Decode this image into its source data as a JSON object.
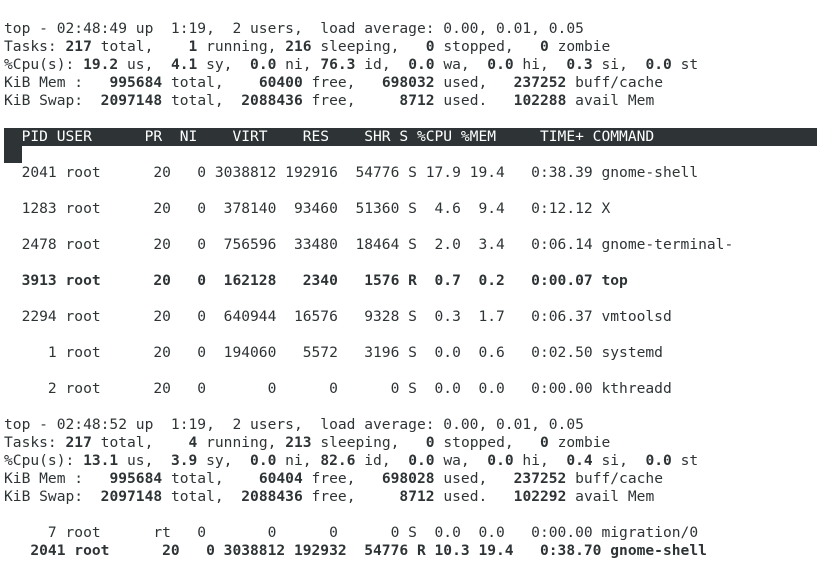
{
  "screen1": {
    "uptime": "top - 02:48:49 up  1:19,  2 users,  load average: 0.00, 0.01, 0.05",
    "tasks": {
      "label": "Tasks: ",
      "total": "217",
      "total_sfx": " total,    ",
      "running": "1",
      "running_sfx": " running, ",
      "sleeping": "216",
      "sleeping_sfx": " sleeping,   ",
      "stopped": "0",
      "stopped_sfx": " stopped,   ",
      "zombie": "0",
      "zombie_sfx": " zombie"
    },
    "cpu": {
      "label": "%Cpu(s): ",
      "us": "19.2",
      "us_sfx": " us,  ",
      "sy": "4.1",
      "sy_sfx": " sy,  ",
      "ni": "0.0",
      "ni_sfx": " ni, ",
      "id": "76.3",
      "id_sfx": " id,  ",
      "wa": "0.0",
      "wa_sfx": " wa,  ",
      "hi": "0.0",
      "hi_sfx": " hi,  ",
      "si": "0.3",
      "si_sfx": " si,  ",
      "st": "0.0",
      "st_sfx": " st"
    },
    "mem": {
      "label": "KiB Mem :   ",
      "total": "995684",
      "total_sfx": " total,    ",
      "free": "60400",
      "free_sfx": " free,   ",
      "used": "698032",
      "used_sfx": " used,   ",
      "cache": "237252",
      "cache_sfx": " buff/cache"
    },
    "swap": {
      "label": "KiB Swap:  ",
      "total": "2097148",
      "total_sfx": " total,  ",
      "free": "2088436",
      "free_sfx": " free,     ",
      "used": "8712",
      "used_sfx": " used.   ",
      "avail": "102288",
      "avail_sfx": " avail Mem"
    },
    "header": "  PID USER      PR  NI    VIRT    RES    SHR S %CPU %MEM     TIME+ COMMAND",
    "rows": [
      "  2041 root      20   0 3038812 192916  54776 S 17.9 19.4   0:38.39 gnome-shell",
      "  1283 root      20   0  378140  93460  51360 S  4.6  9.4   0:12.12 X",
      "  2478 root      20   0  756596  33480  18464 S  2.0  3.4   0:06.14 gnome-terminal-",
      "  3913 root      20   0  162128   2340   1576 R  0.7  0.2   0:00.07 top",
      "  2294 root      20   0  640944  16576   9328 S  0.3  1.7   0:06.37 vmtoolsd",
      "     1 root      20   0  194060   5572   3196 S  0.0  0.6   0:02.50 systemd",
      "     2 root      20   0       0      0      0 S  0.0  0.0   0:00.00 kthreadd"
    ]
  },
  "screen2": {
    "uptime": "top - 02:48:52 up  1:19,  2 users,  load average: 0.00, 0.01, 0.05",
    "tasks": {
      "label": "Tasks: ",
      "total": "217",
      "total_sfx": " total,    ",
      "running": "4",
      "running_sfx": " running, ",
      "sleeping": "213",
      "sleeping_sfx": " sleeping,   ",
      "stopped": "0",
      "stopped_sfx": " stopped,   ",
      "zombie": "0",
      "zombie_sfx": " zombie"
    },
    "cpu": {
      "label": "%Cpu(s): ",
      "us": "13.1",
      "us_sfx": " us,  ",
      "sy": "3.9",
      "sy_sfx": " sy,  ",
      "ni": "0.0",
      "ni_sfx": " ni, ",
      "id": "82.6",
      "id_sfx": " id,  ",
      "wa": "0.0",
      "wa_sfx": " wa,  ",
      "hi": "0.0",
      "hi_sfx": " hi,  ",
      "si": "0.4",
      "si_sfx": " si,  ",
      "st": "0.0",
      "st_sfx": " st"
    },
    "mem": {
      "label": "KiB Mem :   ",
      "total": "995684",
      "total_sfx": " total,    ",
      "free": "60404",
      "free_sfx": " free,   ",
      "used": "698028",
      "used_sfx": " used,   ",
      "cache": "237252",
      "cache_sfx": " buff/cache"
    },
    "swap": {
      "label": "KiB Swap:  ",
      "total": "2097148",
      "total_sfx": " total,  ",
      "free": "2088436",
      "free_sfx": " free,     ",
      "used": "8712",
      "used_sfx": " used.   ",
      "avail": "102292",
      "avail_sfx": " avail Mem"
    },
    "rows": [
      "     7 root      rt   0       0      0      0 S  0.0  0.0   0:00.00 migration/0",
      "   2041 root      20   0 3038812 192932  54776 R 10.3 19.4   0:38.70 gnome-shell"
    ]
  },
  "colors": {
    "foreground": "#2e3436",
    "background": "#ffffff",
    "header_bg": "#2e3436",
    "header_fg": "#ffffff"
  }
}
